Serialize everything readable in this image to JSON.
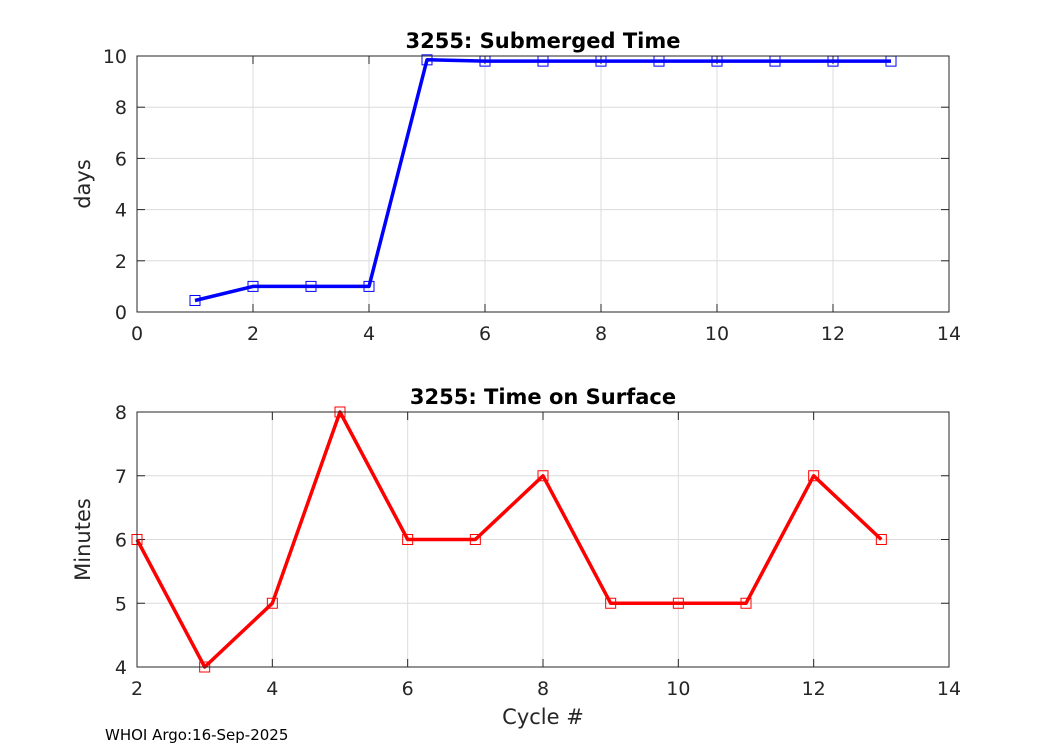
{
  "footer": {
    "text": "WHOI Argo:16-Sep-2025"
  },
  "chart_data": [
    {
      "type": "line",
      "title": "3255: Submerged Time",
      "xlabel": "",
      "ylabel": "days",
      "xlim": [
        0,
        14
      ],
      "ylim": [
        0,
        10
      ],
      "xticks": [
        0,
        2,
        4,
        6,
        8,
        10,
        12,
        14
      ],
      "yticks": [
        0,
        2,
        4,
        6,
        8,
        10
      ],
      "grid": true,
      "series": [
        {
          "color": "#0000ff",
          "marker": "square",
          "x": [
            1,
            2,
            3,
            4,
            5,
            6,
            7,
            8,
            9,
            10,
            11,
            12,
            13
          ],
          "y": [
            0.45,
            1.0,
            1.0,
            1.0,
            9.85,
            9.8,
            9.8,
            9.8,
            9.8,
            9.8,
            9.8,
            9.8,
            9.8
          ]
        }
      ]
    },
    {
      "type": "line",
      "title": "3255: Time on Surface",
      "xlabel": "Cycle #",
      "ylabel": "Minutes",
      "xlim": [
        2,
        14
      ],
      "ylim": [
        4,
        8
      ],
      "xticks": [
        2,
        4,
        6,
        8,
        10,
        12,
        14
      ],
      "yticks": [
        4,
        5,
        6,
        7,
        8
      ],
      "grid": true,
      "series": [
        {
          "color": "#ff0000",
          "marker": "square",
          "x": [
            2,
            3,
            4,
            5,
            6,
            7,
            8,
            9,
            10,
            11,
            12,
            13
          ],
          "y": [
            6,
            4,
            5,
            8,
            6,
            6,
            7,
            5,
            5,
            5,
            7,
            6
          ]
        }
      ]
    }
  ]
}
